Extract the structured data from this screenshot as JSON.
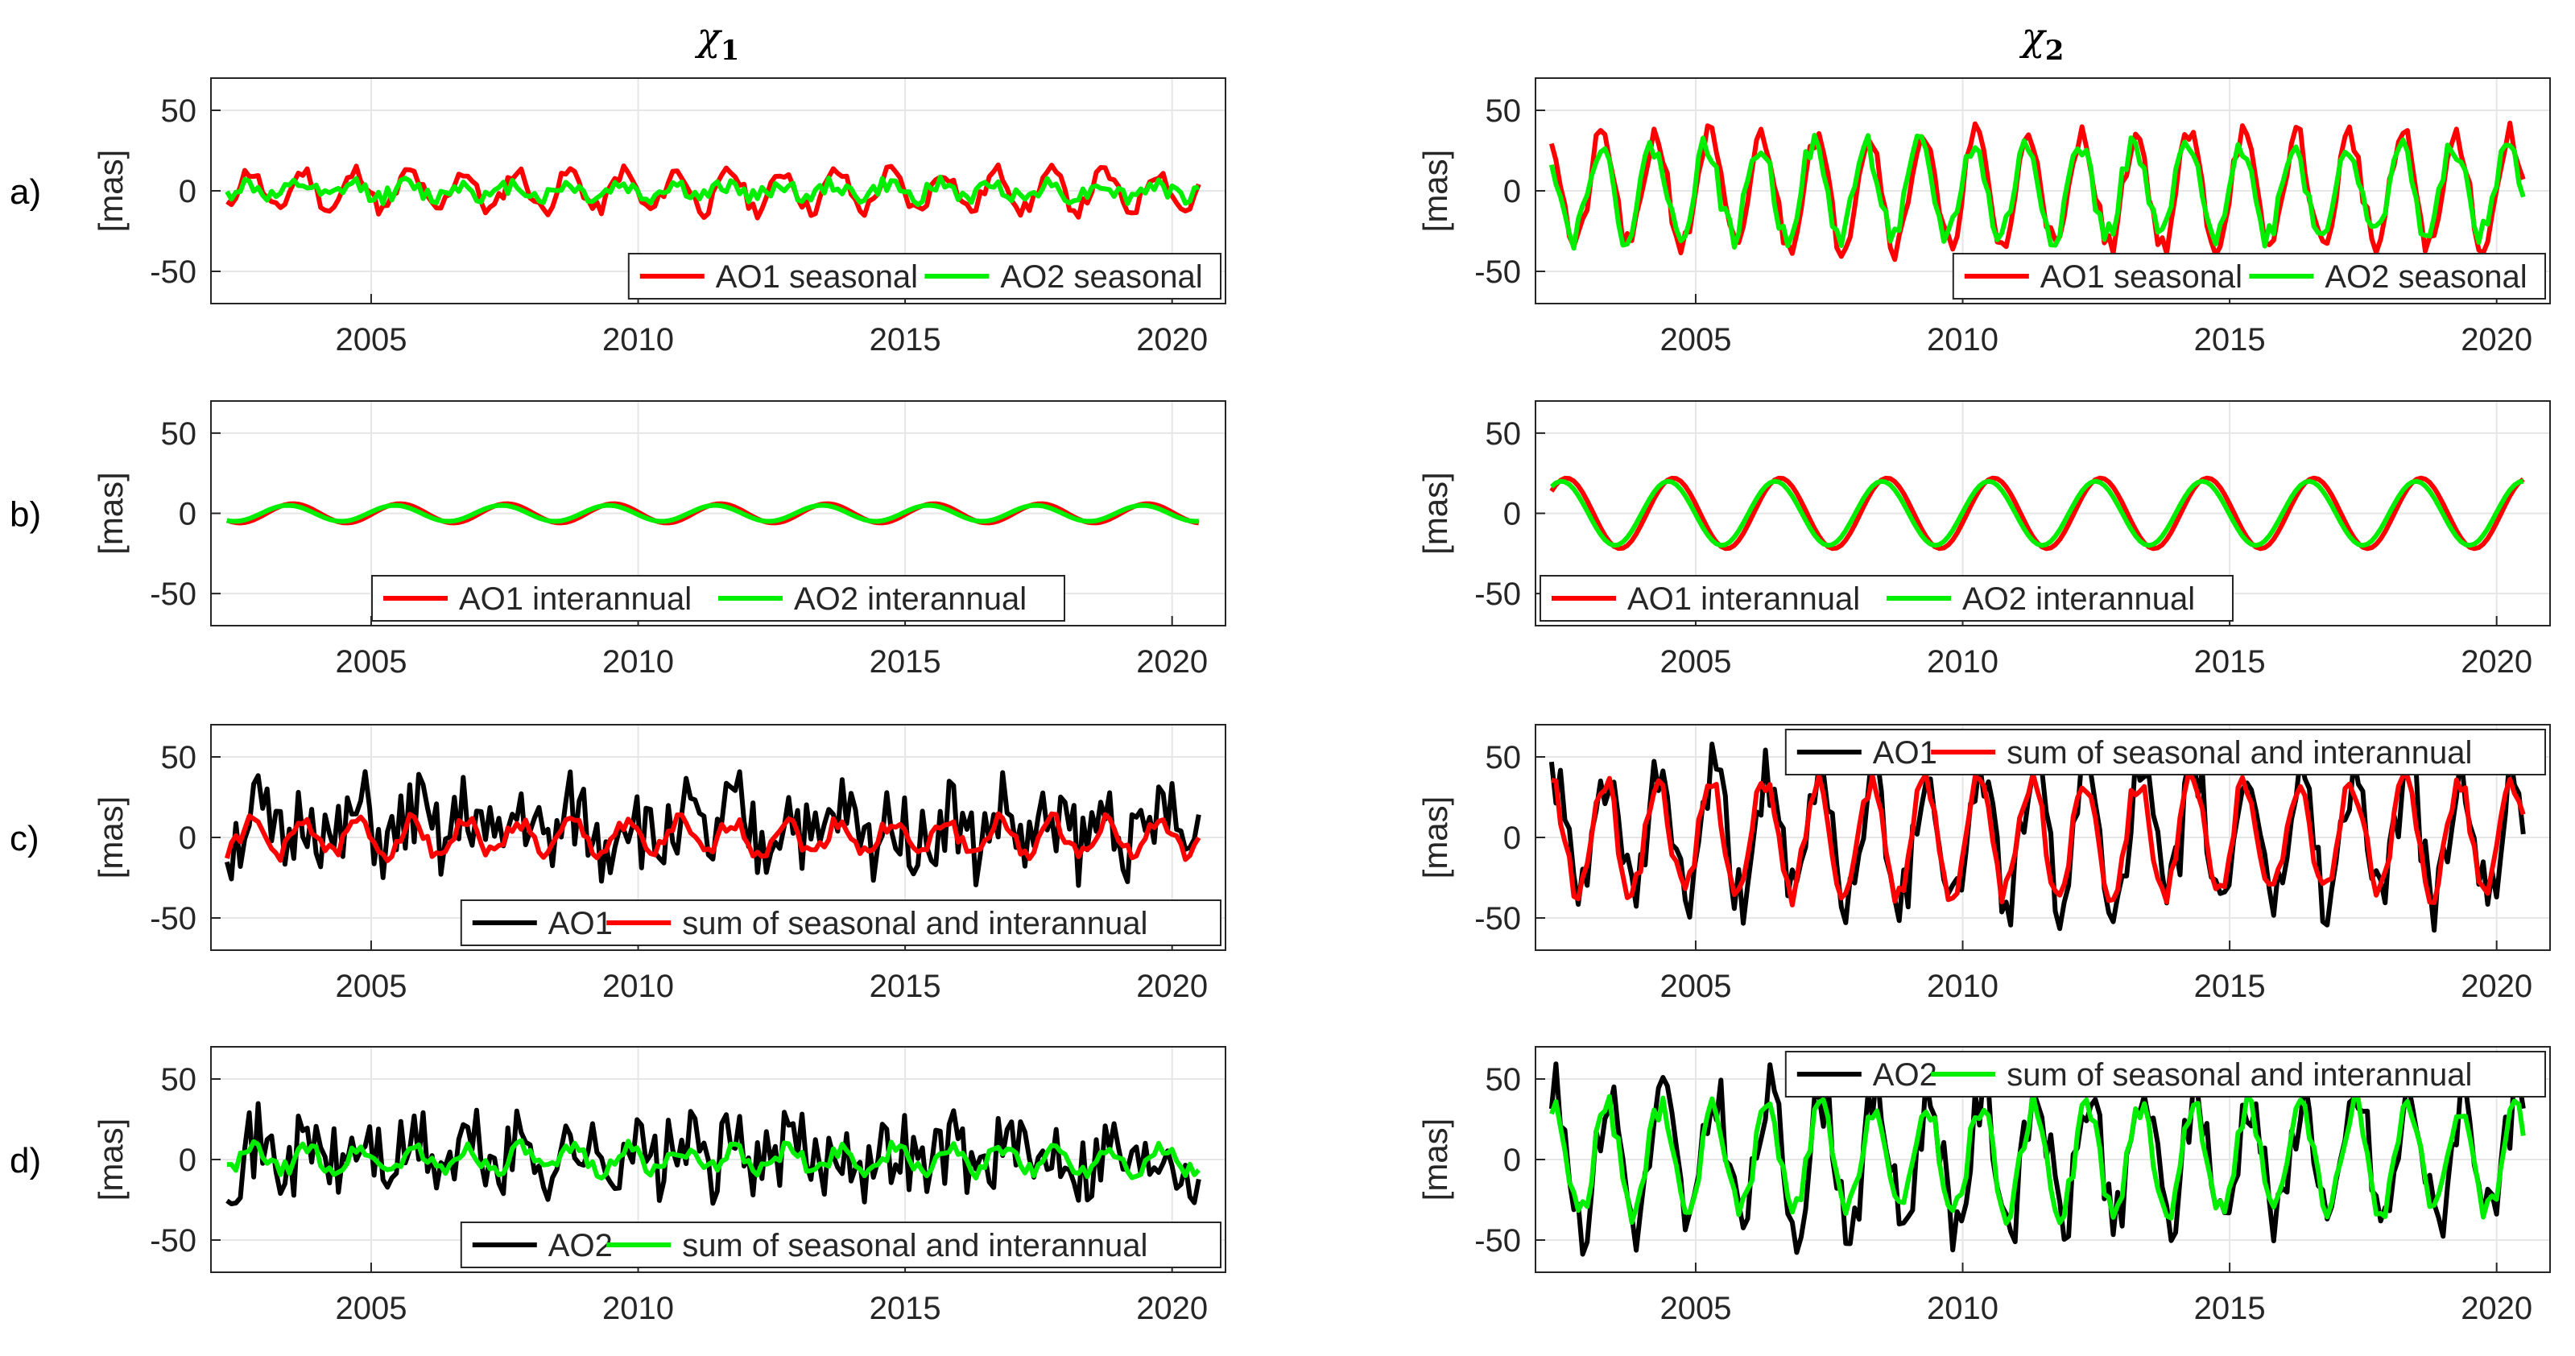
{
  "figure": {
    "column_titles": [
      {
        "symbol": "χ",
        "subscript": "1"
      },
      {
        "symbol": "χ",
        "subscript": "2"
      }
    ],
    "row_labels": [
      "a)",
      "b)",
      "c)",
      "d)"
    ],
    "ylabel": "[mas]"
  },
  "colors": {
    "red": "#ff0000",
    "green": "#00ee00",
    "black": "#000000",
    "grid": "#e6e6e6",
    "axis": "#262626"
  },
  "chart_data": [
    {
      "type": "line",
      "id": "a1",
      "column": "χ1",
      "row": "a)",
      "xlim": [
        2002.0,
        2021.0
      ],
      "ylim": [
        -70,
        70
      ],
      "xticks": [
        2005,
        2010,
        2015,
        2020
      ],
      "yticks": [
        -50,
        0,
        50
      ],
      "xlabel": "",
      "ylabel": "[mas]",
      "grid": true,
      "legend_position": "bottom-right",
      "series": [
        {
          "name": "AO1 seasonal",
          "color": "red",
          "amp": 12,
          "period": 1.0,
          "noise": 5,
          "offset": 0,
          "trend": 0,
          "seed": 11,
          "x": [
            2002.3,
            2020.5
          ]
        },
        {
          "name": "AO2 seasonal",
          "color": "green",
          "amp": 4,
          "period": 1.0,
          "noise": 5,
          "offset": 0,
          "trend": 0,
          "seed": 12,
          "x": [
            2002.3,
            2020.5
          ]
        }
      ]
    },
    {
      "type": "line",
      "id": "a2",
      "column": "χ2",
      "row": "a)",
      "xlim": [
        2002.0,
        2021.0
      ],
      "ylim": [
        -70,
        70
      ],
      "xticks": [
        2005,
        2010,
        2015,
        2020
      ],
      "yticks": [
        -50,
        0,
        50
      ],
      "xlabel": "",
      "ylabel": "[mas]",
      "grid": true,
      "legend_position": "bottom-right",
      "series": [
        {
          "name": "AO1 seasonal",
          "color": "red",
          "amp": 35,
          "period": 1.0,
          "noise": 8,
          "offset": 0,
          "trend": 0,
          "seed": 21,
          "x": [
            2002.3,
            2020.5
          ]
        },
        {
          "name": "AO2 seasonal",
          "color": "green",
          "amp": 28,
          "period": 1.0,
          "noise": 8,
          "offset": 0,
          "trend": 0,
          "seed": 22,
          "x": [
            2002.3,
            2020.5
          ]
        }
      ]
    },
    {
      "type": "line",
      "id": "b1",
      "column": "χ1",
      "row": "b)",
      "xlim": [
        2002.0,
        2021.0
      ],
      "ylim": [
        -70,
        70
      ],
      "xticks": [
        2005,
        2010,
        2015,
        2020
      ],
      "yticks": [
        -50,
        0,
        50
      ],
      "xlabel": "",
      "ylabel": "[mas]",
      "grid": true,
      "legend_position": "bottom-center",
      "series": [
        {
          "name": "AO1 interannual",
          "color": "red",
          "amp": 6,
          "period": 2.0,
          "noise": 0,
          "offset": 0,
          "trend": 0,
          "seed": 31,
          "x": [
            2002.3,
            2020.5
          ]
        },
        {
          "name": "AO2 interannual",
          "color": "green",
          "amp": 5,
          "period": 2.0,
          "noise": 0,
          "offset": 0,
          "trend": 0,
          "seed": 32,
          "x": [
            2002.3,
            2020.5
          ]
        }
      ]
    },
    {
      "type": "line",
      "id": "b2",
      "column": "χ2",
      "row": "b)",
      "xlim": [
        2002.0,
        2021.0
      ],
      "ylim": [
        -70,
        70
      ],
      "xticks": [
        2005,
        2010,
        2015,
        2020
      ],
      "yticks": [
        -50,
        0,
        50
      ],
      "xlabel": "",
      "ylabel": "[mas]",
      "grid": true,
      "legend_position": "bottom-left",
      "series": [
        {
          "name": "AO1 interannual",
          "color": "red",
          "amp": 22,
          "period": 2.0,
          "noise": 0,
          "offset": 0,
          "trend": 0,
          "seed": 41,
          "x": [
            2002.3,
            2020.5
          ]
        },
        {
          "name": "AO2 interannual",
          "color": "green",
          "amp": 20,
          "period": 2.0,
          "noise": 0,
          "offset": 0,
          "trend": 0,
          "seed": 42,
          "x": [
            2002.3,
            2020.5
          ]
        }
      ]
    },
    {
      "type": "line",
      "id": "c1",
      "column": "χ1",
      "row": "c)",
      "xlim": [
        2002.0,
        2021.0
      ],
      "ylim": [
        -70,
        70
      ],
      "xticks": [
        2005,
        2010,
        2015,
        2020
      ],
      "yticks": [
        -50,
        0,
        50
      ],
      "xlabel": "",
      "ylabel": "[mas]",
      "grid": true,
      "legend_position": "bottom-right",
      "series": [
        {
          "name": "AO1",
          "color": "black",
          "amp": 12,
          "period": 1.0,
          "noise": 26,
          "offset": 5,
          "trend": 0,
          "seed": 51,
          "x": [
            2002.3,
            2020.5
          ]
        },
        {
          "name": "sum of seasonal and interannual",
          "color": "red",
          "amp": 10,
          "period": 1.0,
          "noise": 5,
          "offset": 0,
          "trend": 0,
          "seed": 52,
          "x": [
            2002.3,
            2020.5
          ]
        }
      ]
    },
    {
      "type": "line",
      "id": "c2",
      "column": "χ2",
      "row": "c)",
      "xlim": [
        2002.0,
        2021.0
      ],
      "ylim": [
        -70,
        70
      ],
      "xticks": [
        2005,
        2010,
        2015,
        2020
      ],
      "yticks": [
        -50,
        0,
        50
      ],
      "xlabel": "",
      "ylabel": "[mas]",
      "grid": true,
      "legend_position": "top-right",
      "series": [
        {
          "name": "AO1",
          "color": "black",
          "amp": 40,
          "period": 1.0,
          "noise": 20,
          "offset": 0,
          "trend": 0,
          "seed": 61,
          "x": [
            2002.3,
            2020.5
          ]
        },
        {
          "name": "sum of seasonal and interannual",
          "color": "red",
          "amp": 35,
          "period": 1.0,
          "noise": 8,
          "offset": 0,
          "trend": 0,
          "seed": 62,
          "x": [
            2002.3,
            2020.5
          ]
        }
      ]
    },
    {
      "type": "line",
      "id": "d1",
      "column": "χ1",
      "row": "d)",
      "xlim": [
        2002.0,
        2021.0
      ],
      "ylim": [
        -70,
        70
      ],
      "xticks": [
        2005,
        2010,
        2015,
        2020
      ],
      "yticks": [
        -50,
        0,
        50
      ],
      "xlabel": "",
      "ylabel": "[mas]",
      "grid": true,
      "legend_position": "bottom-right",
      "series": [
        {
          "name": "AO2",
          "color": "black",
          "amp": 8,
          "period": 1.0,
          "noise": 24,
          "offset": 3,
          "trend": 0,
          "seed": 71,
          "x": [
            2002.3,
            2020.5
          ]
        },
        {
          "name": "sum of seasonal and interannual",
          "color": "green",
          "amp": 7,
          "period": 1.0,
          "noise": 5,
          "offset": 0,
          "trend": 0,
          "seed": 72,
          "x": [
            2002.3,
            2020.5
          ]
        }
      ]
    },
    {
      "type": "line",
      "id": "d2",
      "column": "χ2",
      "row": "d)",
      "xlim": [
        2002.0,
        2021.0
      ],
      "ylim": [
        -70,
        70
      ],
      "xticks": [
        2005,
        2010,
        2015,
        2020
      ],
      "yticks": [
        -50,
        0,
        50
      ],
      "xlabel": "",
      "ylabel": "[mas]",
      "grid": true,
      "legend_position": "top-right",
      "series": [
        {
          "name": "AO2",
          "color": "black",
          "amp": 40,
          "period": 1.0,
          "noise": 20,
          "offset": 0,
          "trend": 0,
          "seed": 81,
          "x": [
            2002.3,
            2020.5
          ]
        },
        {
          "name": "sum of seasonal and interannual",
          "color": "green",
          "amp": 33,
          "period": 1.0,
          "noise": 8,
          "offset": 0,
          "trend": 0,
          "seed": 82,
          "x": [
            2002.3,
            2020.5
          ]
        }
      ]
    }
  ]
}
